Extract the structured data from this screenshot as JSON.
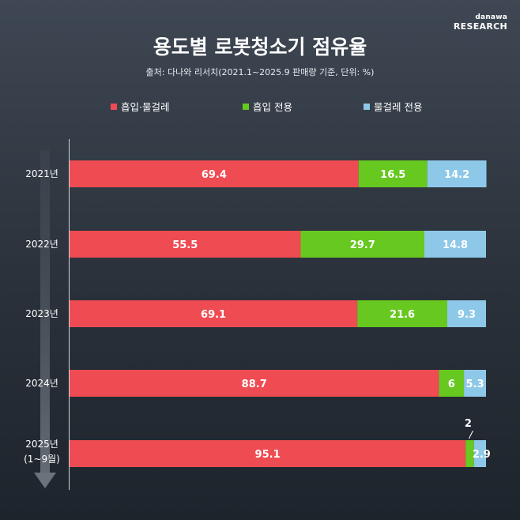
{
  "brand": {
    "top": "danawa",
    "bottom": "RESEARCH"
  },
  "chart_data": {
    "type": "bar",
    "stacked": true,
    "orientation": "horizontal",
    "title": "용도별 로봇청소기 점유율",
    "subtitle": "출처: 다나와 리서치(2021.1~2025.9 판매량 기준, 단위: %)",
    "categories": [
      "2021년",
      "2022년",
      "2023년",
      "2024년",
      "2025년"
    ],
    "category_sublabels": [
      "",
      "",
      "",
      "",
      "(1~9월)"
    ],
    "xlim": [
      0,
      100
    ],
    "series": [
      {
        "name": "흡입·물걸레",
        "color": "#ef4b52",
        "values": [
          69.4,
          55.5,
          69.1,
          88.7,
          95.1
        ]
      },
      {
        "name": "흡입 전용",
        "color": "#67c81f",
        "values": [
          16.5,
          29.7,
          21.6,
          6,
          2
        ]
      },
      {
        "name": "물걸레 전용",
        "color": "#8ec8e8",
        "values": [
          14.2,
          14.8,
          9.3,
          5.3,
          2.9
        ]
      }
    ],
    "legend_position": "top",
    "grid": false
  }
}
